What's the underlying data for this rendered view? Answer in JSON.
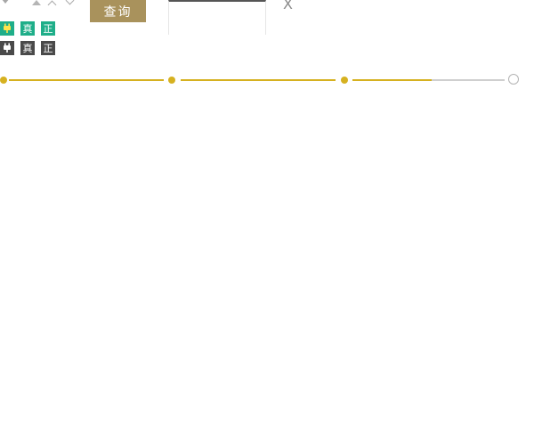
{
  "toolbar": {
    "query_label": "查询",
    "close_label": "X"
  },
  "icon_rows": {
    "active": {
      "icons": [
        "plug-icon",
        "zhen-icon",
        "zheng-icon"
      ],
      "glyphs": [
        "",
        "真",
        "正"
      ],
      "color": "#1fae89"
    },
    "inactive": {
      "icons": [
        "plug-icon",
        "zhen-icon",
        "zheng-icon"
      ],
      "glyphs": [
        "",
        "真",
        "正"
      ],
      "color": "#4a4a4a"
    }
  },
  "progress": {
    "total_steps": 4,
    "completed_steps": 3,
    "current_step_fraction": 0.5,
    "accent_color": "#d6b120",
    "inactive_color": "#cfcfcf"
  }
}
